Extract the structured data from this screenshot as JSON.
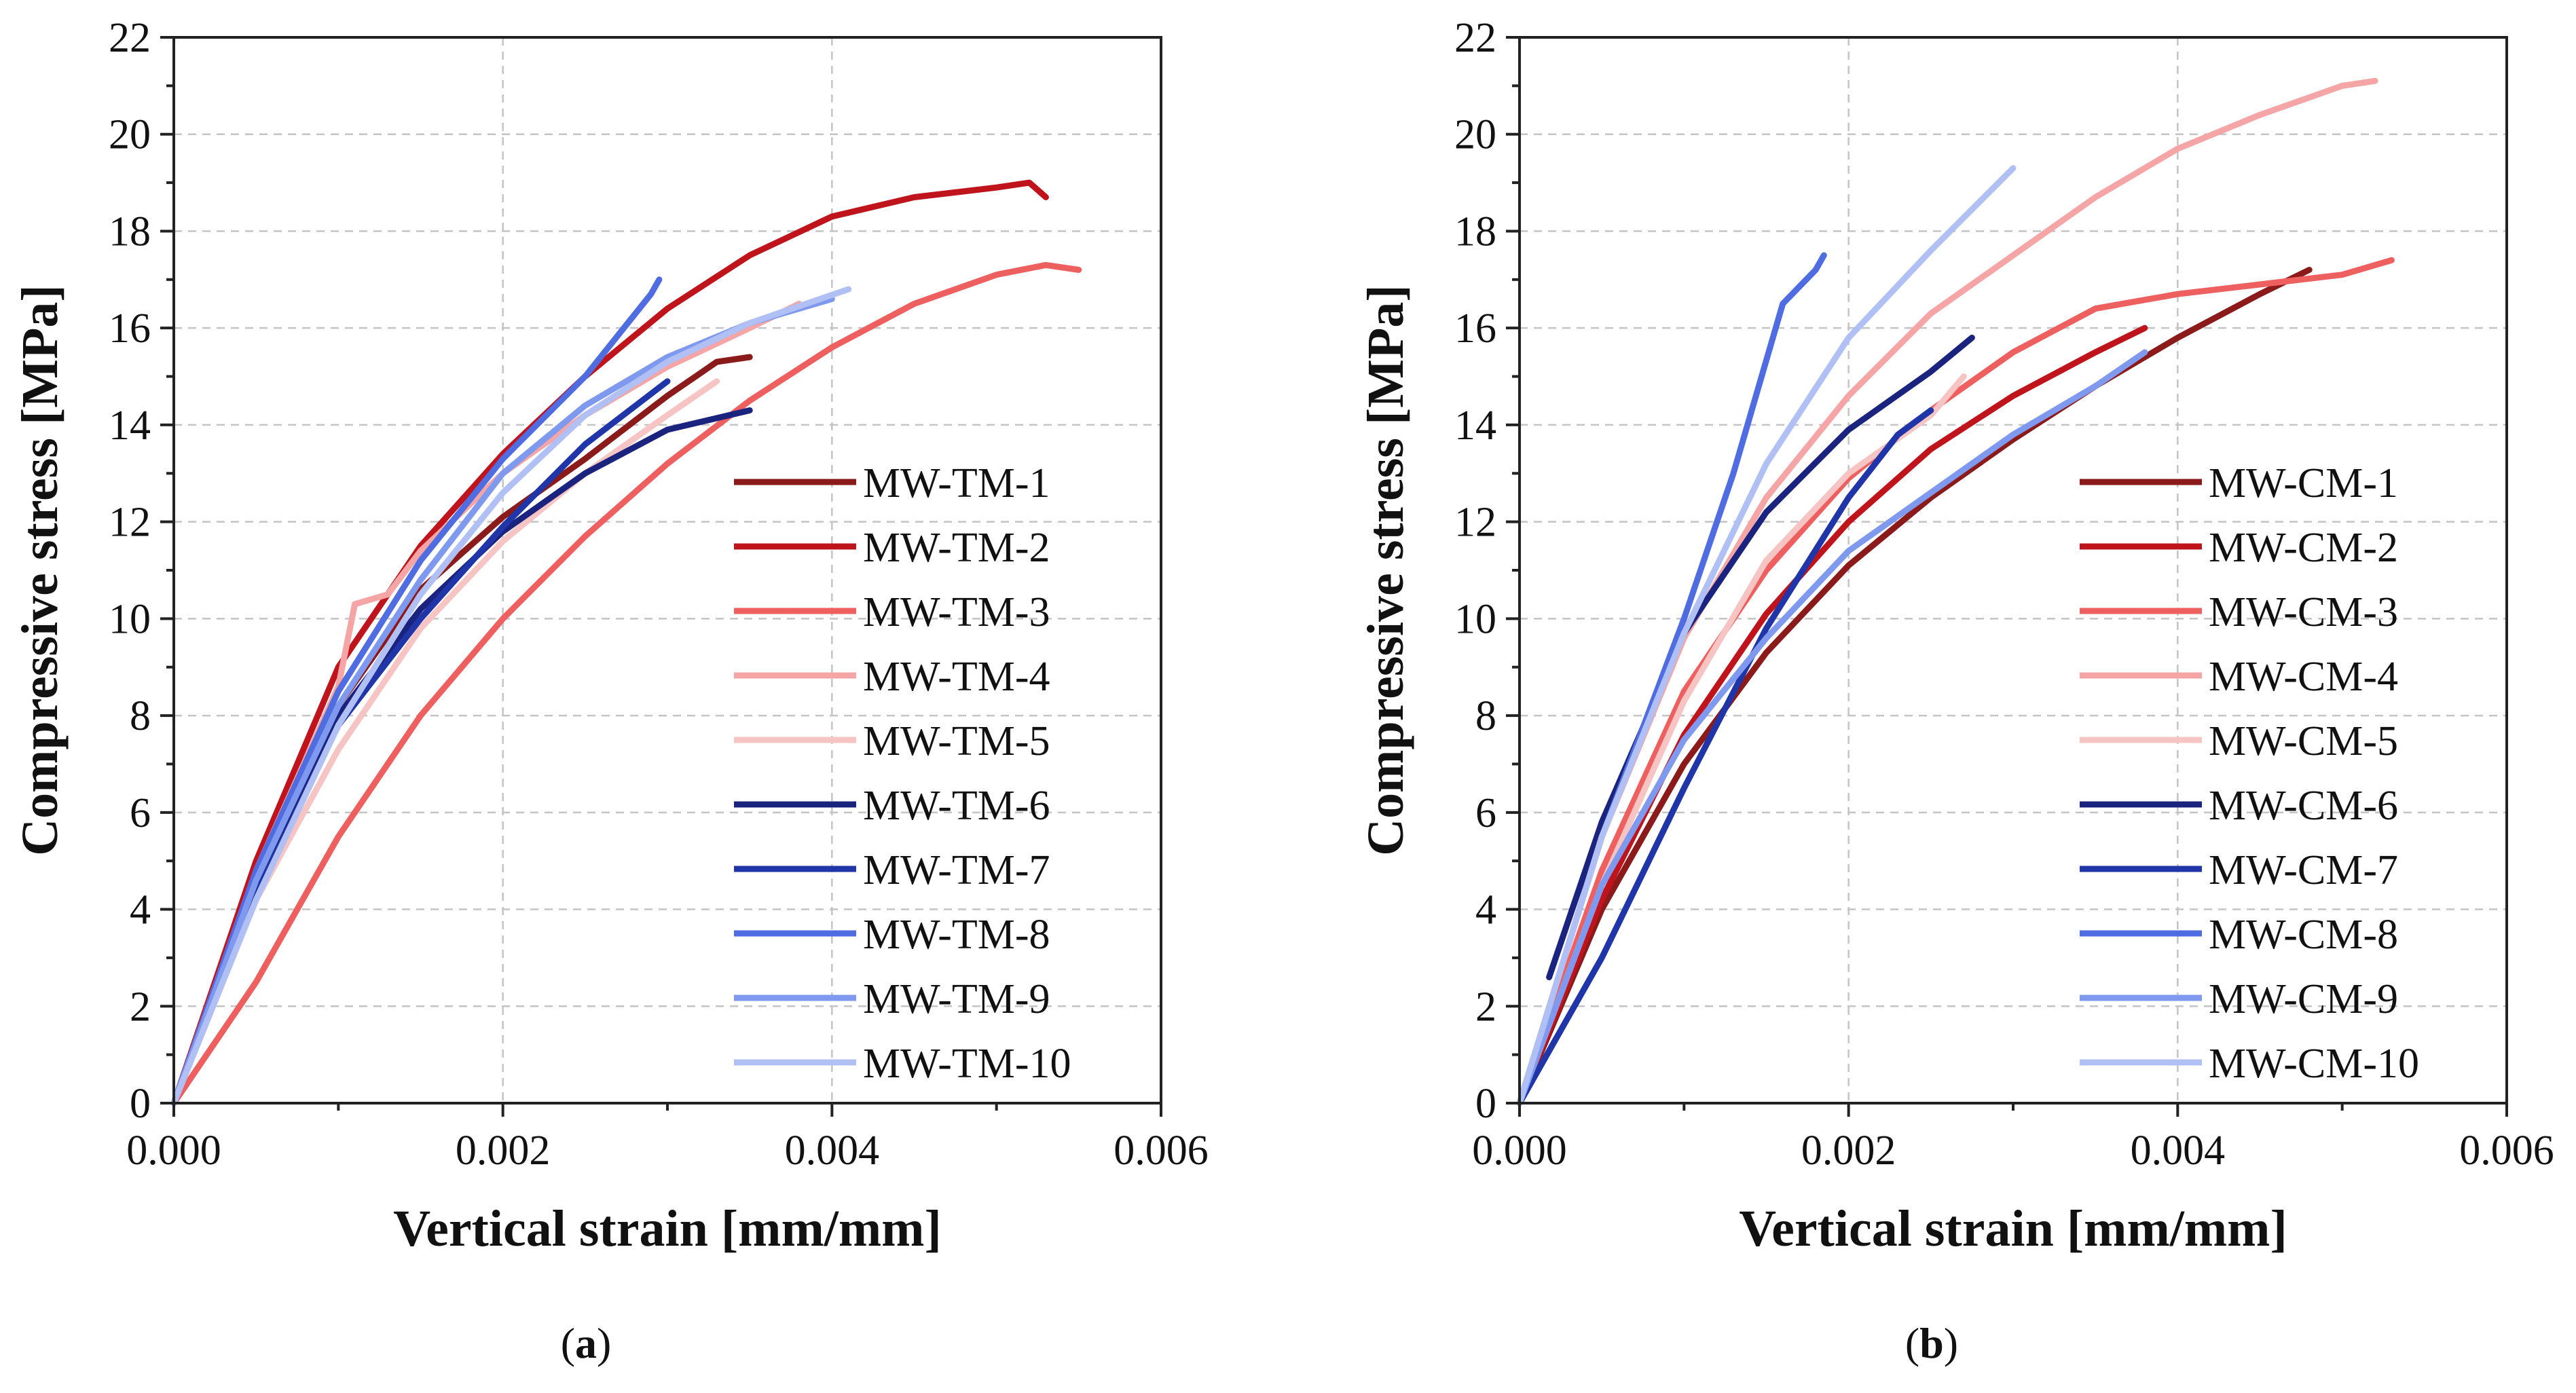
{
  "chart_data": [
    {
      "type": "line",
      "panel": "a",
      "caption": "(a)",
      "caption_letter": "a",
      "xlabel": "Vertical strain [mm/mm]",
      "ylabel": "Compressive stress [MPa]",
      "xlim": [
        0,
        0.006
      ],
      "ylim": [
        0,
        22
      ],
      "xticks": [
        0,
        0.002,
        0.004,
        0.006
      ],
      "xtick_labels": [
        "0.000",
        "0.002",
        "0.004",
        "0.006"
      ],
      "yticks": [
        0,
        2,
        4,
        6,
        8,
        10,
        12,
        14,
        16,
        18,
        20,
        22
      ],
      "ytick_labels": [
        "0",
        "2",
        "4",
        "6",
        "8",
        "10",
        "12",
        "14",
        "16",
        "18",
        "20",
        "22"
      ],
      "grid": true,
      "legend_position": "center-right",
      "series": [
        {
          "name": "MW-TM-1",
          "color": "#8b1a1a",
          "points": [
            [
              0,
              0
            ],
            [
              0.0005,
              4.5
            ],
            [
              0.001,
              8.2
            ],
            [
              0.0015,
              10.6
            ],
            [
              0.002,
              12.1
            ],
            [
              0.0025,
              13.3
            ],
            [
              0.003,
              14.6
            ],
            [
              0.0033,
              15.3
            ],
            [
              0.0035,
              15.4
            ]
          ]
        },
        {
          "name": "MW-TM-2",
          "color": "#c0141c",
          "points": [
            [
              0,
              0
            ],
            [
              0.0005,
              5
            ],
            [
              0.001,
              9
            ],
            [
              0.0015,
              11.5
            ],
            [
              0.002,
              13.4
            ],
            [
              0.0025,
              15
            ],
            [
              0.003,
              16.4
            ],
            [
              0.0035,
              17.5
            ],
            [
              0.004,
              18.3
            ],
            [
              0.0045,
              18.7
            ],
            [
              0.005,
              18.9
            ],
            [
              0.0052,
              19
            ],
            [
              0.0053,
              18.7
            ]
          ]
        },
        {
          "name": "MW-TM-3",
          "color": "#ee6060",
          "points": [
            [
              0,
              0
            ],
            [
              0.0005,
              2.5
            ],
            [
              0.001,
              5.5
            ],
            [
              0.0015,
              8
            ],
            [
              0.002,
              10
            ],
            [
              0.0025,
              11.7
            ],
            [
              0.003,
              13.2
            ],
            [
              0.0035,
              14.5
            ],
            [
              0.004,
              15.6
            ],
            [
              0.0045,
              16.5
            ],
            [
              0.005,
              17.1
            ],
            [
              0.0053,
              17.3
            ],
            [
              0.0055,
              17.2
            ]
          ]
        },
        {
          "name": "MW-TM-4",
          "color": "#f5a5a5",
          "points": [
            [
              0,
              0
            ],
            [
              0.0005,
              4.8
            ],
            [
              0.001,
              8.6
            ],
            [
              0.0011,
              10.3
            ],
            [
              0.0013,
              10.5
            ],
            [
              0.0015,
              11.4
            ],
            [
              0.002,
              13
            ],
            [
              0.0025,
              14.2
            ],
            [
              0.003,
              15.2
            ],
            [
              0.0035,
              16
            ],
            [
              0.0038,
              16.5
            ]
          ]
        },
        {
          "name": "MW-TM-5",
          "color": "#f7c4c4",
          "points": [
            [
              0,
              0
            ],
            [
              0.0005,
              4.2
            ],
            [
              0.001,
              7.3
            ],
            [
              0.0015,
              9.8
            ],
            [
              0.002,
              11.6
            ],
            [
              0.0025,
              13
            ],
            [
              0.003,
              14.2
            ],
            [
              0.0033,
              14.9
            ]
          ]
        },
        {
          "name": "MW-TM-6",
          "color": "#1a237e",
          "points": [
            [
              0,
              0
            ],
            [
              0.0005,
              4.5
            ],
            [
              0.001,
              8
            ],
            [
              0.0015,
              10.2
            ],
            [
              0.002,
              11.8
            ],
            [
              0.0025,
              13
            ],
            [
              0.003,
              13.9
            ],
            [
              0.0035,
              14.3
            ]
          ]
        },
        {
          "name": "MW-TM-7",
          "color": "#1f35a8",
          "points": [
            [
              0,
              0
            ],
            [
              0.0005,
              4.3
            ],
            [
              0.001,
              7.8
            ],
            [
              0.0015,
              10
            ],
            [
              0.002,
              11.9
            ],
            [
              0.0025,
              13.6
            ],
            [
              0.003,
              14.9
            ]
          ]
        },
        {
          "name": "MW-TM-8",
          "color": "#4f6de0",
          "points": [
            [
              0,
              0
            ],
            [
              0.0005,
              4.8
            ],
            [
              0.001,
              8.5
            ],
            [
              0.0015,
              11.2
            ],
            [
              0.002,
              13.3
            ],
            [
              0.0025,
              15
            ],
            [
              0.0029,
              16.7
            ],
            [
              0.00295,
              17
            ]
          ]
        },
        {
          "name": "MW-TM-9",
          "color": "#7f99ee",
          "points": [
            [
              0,
              0
            ],
            [
              0.0005,
              4.6
            ],
            [
              0.001,
              8.2
            ],
            [
              0.0015,
              10.8
            ],
            [
              0.002,
              13
            ],
            [
              0.0025,
              14.4
            ],
            [
              0.003,
              15.4
            ],
            [
              0.0035,
              16.1
            ],
            [
              0.004,
              16.6
            ]
          ]
        },
        {
          "name": "MW-TM-10",
          "color": "#b0c0f4",
          "points": [
            [
              0,
              0
            ],
            [
              0.0005,
              4.2
            ],
            [
              0.001,
              7.8
            ],
            [
              0.0015,
              10.5
            ],
            [
              0.002,
              12.6
            ],
            [
              0.0025,
              14.2
            ],
            [
              0.003,
              15.3
            ],
            [
              0.0035,
              16.1
            ],
            [
              0.0041,
              16.8
            ]
          ]
        }
      ]
    },
    {
      "type": "line",
      "panel": "b",
      "caption": "(b)",
      "caption_letter": "b",
      "xlabel": "Vertical strain [mm/mm]",
      "ylabel": "Compressive stress [MPa]",
      "xlim": [
        0,
        0.006
      ],
      "ylim": [
        0,
        22
      ],
      "xticks": [
        0,
        0.002,
        0.004,
        0.006
      ],
      "xtick_labels": [
        "0.000",
        "0.002",
        "0.004",
        "0.006"
      ],
      "yticks": [
        0,
        2,
        4,
        6,
        8,
        10,
        12,
        14,
        16,
        18,
        20,
        22
      ],
      "ytick_labels": [
        "0",
        "2",
        "4",
        "6",
        "8",
        "10",
        "12",
        "14",
        "16",
        "18",
        "20",
        "22"
      ],
      "grid": true,
      "legend_position": "center-right",
      "series": [
        {
          "name": "MW-CM-1",
          "color": "#8b1a1a",
          "points": [
            [
              0,
              0
            ],
            [
              0.0005,
              4
            ],
            [
              0.001,
              7
            ],
            [
              0.0015,
              9.3
            ],
            [
              0.002,
              11.1
            ],
            [
              0.0025,
              12.5
            ],
            [
              0.003,
              13.7
            ],
            [
              0.0035,
              14.8
            ],
            [
              0.004,
              15.8
            ],
            [
              0.0045,
              16.7
            ],
            [
              0.0048,
              17.2
            ]
          ]
        },
        {
          "name": "MW-CM-2",
          "color": "#c0141c",
          "points": [
            [
              0,
              0
            ],
            [
              0.0005,
              4.2
            ],
            [
              0.001,
              7.6
            ],
            [
              0.0015,
              10.1
            ],
            [
              0.002,
              12
            ],
            [
              0.0025,
              13.5
            ],
            [
              0.003,
              14.6
            ],
            [
              0.0035,
              15.5
            ],
            [
              0.0038,
              16
            ]
          ]
        },
        {
          "name": "MW-CM-3",
          "color": "#ee6060",
          "points": [
            [
              0,
              0
            ],
            [
              0.0005,
              4.8
            ],
            [
              0.001,
              8.5
            ],
            [
              0.0015,
              11
            ],
            [
              0.002,
              12.9
            ],
            [
              0.0025,
              14.3
            ],
            [
              0.003,
              15.5
            ],
            [
              0.0035,
              16.4
            ],
            [
              0.004,
              16.7
            ],
            [
              0.0045,
              16.9
            ],
            [
              0.005,
              17.1
            ],
            [
              0.0053,
              17.4
            ]
          ]
        },
        {
          "name": "MW-CM-4",
          "color": "#f5a5a5",
          "points": [
            [
              0,
              0
            ],
            [
              0.0005,
              5.5
            ],
            [
              0.001,
              9.6
            ],
            [
              0.0015,
              12.5
            ],
            [
              0.002,
              14.6
            ],
            [
              0.0025,
              16.3
            ],
            [
              0.003,
              17.5
            ],
            [
              0.0035,
              18.7
            ],
            [
              0.004,
              19.7
            ],
            [
              0.0045,
              20.4
            ],
            [
              0.005,
              21
            ],
            [
              0.0052,
              21.1
            ]
          ]
        },
        {
          "name": "MW-CM-5",
          "color": "#f7c4c4",
          "points": [
            [
              0,
              0
            ],
            [
              0.0005,
              4.5
            ],
            [
              0.001,
              8.3
            ],
            [
              0.0015,
              11.2
            ],
            [
              0.002,
              13
            ],
            [
              0.0025,
              14.2
            ],
            [
              0.0027,
              15
            ]
          ]
        },
        {
          "name": "MW-CM-6",
          "color": "#1a237e",
          "points": [
            [
              0.00018,
              2.6
            ],
            [
              0.0005,
              5.8
            ],
            [
              0.001,
              9.7
            ],
            [
              0.0015,
              12.2
            ],
            [
              0.002,
              13.9
            ],
            [
              0.0025,
              15.1
            ],
            [
              0.00275,
              15.8
            ]
          ]
        },
        {
          "name": "MW-CM-7",
          "color": "#1f35a8",
          "points": [
            [
              0,
              0
            ],
            [
              0.0005,
              3
            ],
            [
              0.001,
              6.5
            ],
            [
              0.0015,
              9.8
            ],
            [
              0.002,
              12.5
            ],
            [
              0.0023,
              13.8
            ],
            [
              0.0025,
              14.3
            ]
          ]
        },
        {
          "name": "MW-CM-8",
          "color": "#4f6de0",
          "points": [
            [
              0,
              0
            ],
            [
              0.0005,
              5.5
            ],
            [
              0.001,
              10
            ],
            [
              0.0013,
              13
            ],
            [
              0.0016,
              16.5
            ],
            [
              0.0018,
              17.2
            ],
            [
              0.00185,
              17.5
            ]
          ]
        },
        {
          "name": "MW-CM-9",
          "color": "#7f99ee",
          "points": [
            [
              0,
              0
            ],
            [
              0.0005,
              4.5
            ],
            [
              0.001,
              7.5
            ],
            [
              0.0015,
              9.6
            ],
            [
              0.002,
              11.4
            ],
            [
              0.0025,
              12.6
            ],
            [
              0.003,
              13.8
            ],
            [
              0.0035,
              14.8
            ],
            [
              0.0038,
              15.5
            ]
          ]
        },
        {
          "name": "MW-CM-10",
          "color": "#b0c0f4",
          "points": [
            [
              0,
              0
            ],
            [
              0.0005,
              5.5
            ],
            [
              0.001,
              9.7
            ],
            [
              0.0015,
              13.2
            ],
            [
              0.002,
              15.8
            ],
            [
              0.0025,
              17.6
            ],
            [
              0.003,
              19.3
            ]
          ]
        }
      ]
    }
  ]
}
